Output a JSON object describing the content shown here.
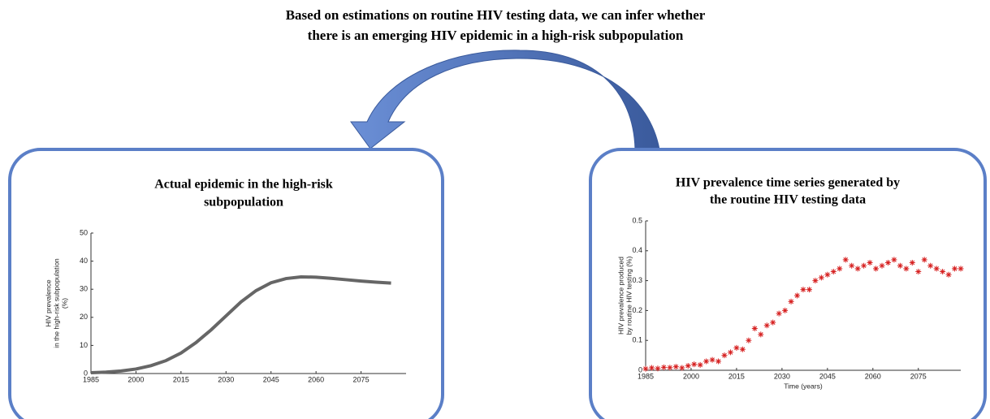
{
  "header": {
    "title": [
      "Based on estimations on routine HIV testing data, we can infer whether",
      "there is an emerging HIV epidemic in a high-risk subpopulation"
    ]
  },
  "chart_data": [
    {
      "type": "line",
      "title": [
        "Actual epidemic in the high-risk",
        "subpopulation"
      ],
      "ylabel": [
        "HIV prevalence",
        "in the high-risk subpopulation",
        "(%)"
      ],
      "x": [
        1985,
        1990,
        1995,
        2000,
        2005,
        2010,
        2015,
        2020,
        2025,
        2030,
        2035,
        2040,
        2045,
        2050,
        2055,
        2060,
        2065,
        2070,
        2075,
        2080,
        2085
      ],
      "values": [
        0.3,
        0.5,
        0.9,
        1.6,
        2.8,
        4.6,
        7.3,
        11,
        15.5,
        20.5,
        25.5,
        29.5,
        32.3,
        33.8,
        34.4,
        34.3,
        33.9,
        33.4,
        32.9,
        32.5,
        32.2
      ],
      "color": "#666666",
      "xlim": [
        1985,
        2090
      ],
      "xticks": [
        1985,
        2000,
        2015,
        2030,
        2045,
        2060,
        2075
      ],
      "ylim": [
        0,
        50
      ],
      "yticks": [
        0,
        10,
        20,
        30,
        40,
        50
      ]
    },
    {
      "type": "scatter",
      "title": [
        "HIV prevalence time series generated by",
        "the routine HIV testing data"
      ],
      "xlabel": "Time (years)",
      "ylabel": [
        "HIV prevalence produced",
        "by routine HIV testing (%)"
      ],
      "x": [
        1985,
        1987,
        1989,
        1991,
        1993,
        1995,
        1997,
        1999,
        2001,
        2003,
        2005,
        2007,
        2009,
        2011,
        2013,
        2015,
        2017,
        2019,
        2021,
        2023,
        2025,
        2027,
        2029,
        2031,
        2033,
        2035,
        2037,
        2039,
        2041,
        2043,
        2045,
        2047,
        2049,
        2051,
        2053,
        2055,
        2057,
        2059,
        2061,
        2063,
        2065,
        2067,
        2069,
        2071,
        2073,
        2075,
        2077,
        2079,
        2081,
        2083,
        2085,
        2087,
        2089
      ],
      "values": [
        0.005,
        0.008,
        0.006,
        0.01,
        0.009,
        0.012,
        0.008,
        0.015,
        0.02,
        0.018,
        0.03,
        0.035,
        0.03,
        0.05,
        0.06,
        0.075,
        0.07,
        0.1,
        0.14,
        0.12,
        0.15,
        0.16,
        0.19,
        0.2,
        0.23,
        0.25,
        0.27,
        0.27,
        0.3,
        0.31,
        0.32,
        0.33,
        0.34,
        0.37,
        0.35,
        0.34,
        0.35,
        0.36,
        0.34,
        0.35,
        0.36,
        0.37,
        0.35,
        0.34,
        0.36,
        0.33,
        0.37,
        0.35,
        0.34,
        0.33,
        0.32,
        0.34,
        0.34
      ],
      "color": "#d62020",
      "xlim": [
        1985,
        2089
      ],
      "xticks": [
        1985,
        2000,
        2015,
        2030,
        2045,
        2060,
        2075
      ],
      "ylim": [
        0,
        0.5
      ],
      "yticks": [
        0,
        0.1,
        0.2,
        0.3,
        0.4,
        0.5
      ]
    }
  ]
}
